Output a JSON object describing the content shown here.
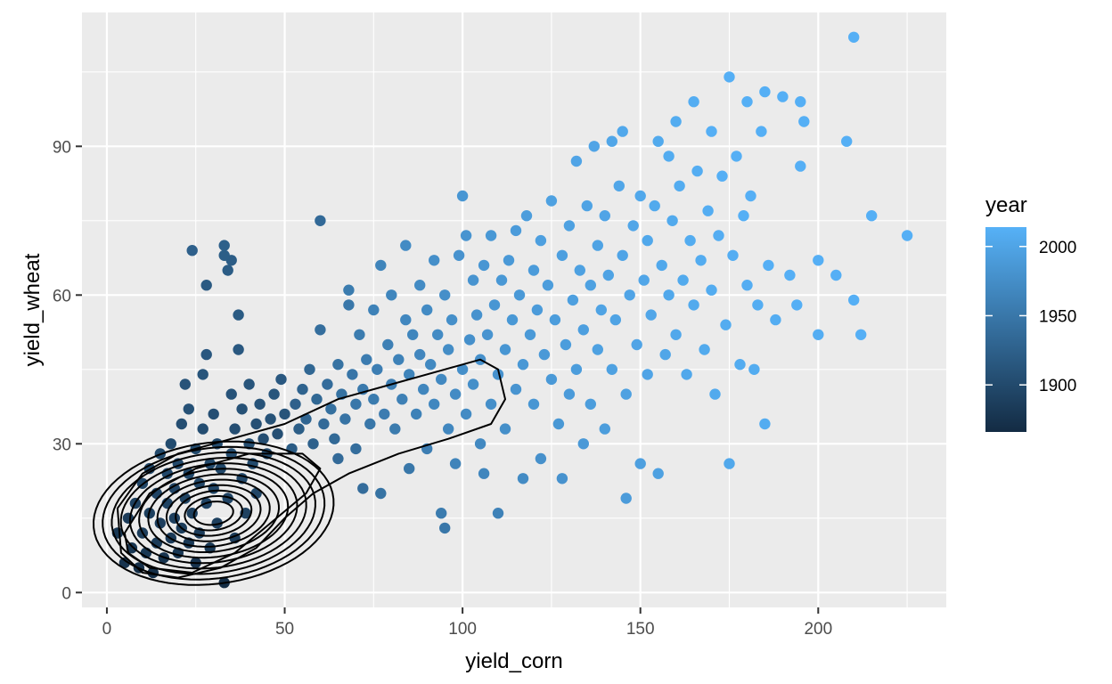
{
  "chart_data": {
    "type": "scatter",
    "title": "",
    "xlabel": "yield_corn",
    "ylabel": "yield_wheat",
    "xlim": [
      -7,
      236
    ],
    "ylim": [
      -3,
      117
    ],
    "x_ticks": [
      0,
      50,
      100,
      150,
      200
    ],
    "y_ticks": [
      0,
      30,
      60,
      90
    ],
    "grid": true,
    "legend": {
      "title": "year",
      "position": "right",
      "type": "colorbar",
      "range": [
        1866,
        2014
      ],
      "ticks": [
        1900,
        1950,
        2000
      ],
      "colors": {
        "low": "#132B43",
        "high": "#56B1F7"
      }
    },
    "overlay": "2d density contours",
    "colors": {
      "panel": "#EBEBEB",
      "grid": "#FFFFFF",
      "contour": "#000000"
    },
    "points": [
      [
        3,
        12,
        1880
      ],
      [
        5,
        6,
        1875
      ],
      [
        6,
        15,
        1885
      ],
      [
        7,
        9,
        1878
      ],
      [
        8,
        18,
        1890
      ],
      [
        9,
        5,
        1872
      ],
      [
        10,
        12,
        1886
      ],
      [
        10,
        22,
        1895
      ],
      [
        11,
        8,
        1880
      ],
      [
        12,
        16,
        1889
      ],
      [
        12,
        25,
        1898
      ],
      [
        13,
        4,
        1870
      ],
      [
        14,
        10,
        1884
      ],
      [
        14,
        20,
        1893
      ],
      [
        15,
        14,
        1887
      ],
      [
        15,
        28,
        1900
      ],
      [
        16,
        7,
        1876
      ],
      [
        17,
        18,
        1892
      ],
      [
        17,
        24,
        1897
      ],
      [
        18,
        11,
        1883
      ],
      [
        18,
        30,
        1902
      ],
      [
        19,
        15,
        1888
      ],
      [
        19,
        21,
        1894
      ],
      [
        20,
        8,
        1879
      ],
      [
        20,
        26,
        1899
      ],
      [
        21,
        13,
        1886
      ],
      [
        21,
        34,
        1905
      ],
      [
        22,
        19,
        1891
      ],
      [
        22,
        42,
        1910
      ],
      [
        23,
        10,
        1882
      ],
      [
        23,
        24,
        1898
      ],
      [
        23,
        37,
        1908
      ],
      [
        24,
        69,
        1925
      ],
      [
        24,
        16,
        1889
      ],
      [
        25,
        29,
        1900
      ],
      [
        25,
        6,
        1874
      ],
      [
        26,
        12,
        1885
      ],
      [
        26,
        22,
        1896
      ],
      [
        27,
        44,
        1912
      ],
      [
        27,
        33,
        1904
      ],
      [
        28,
        62,
        1918
      ],
      [
        28,
        18,
        1892
      ],
      [
        28,
        48,
        1915
      ],
      [
        29,
        26,
        1899
      ],
      [
        29,
        9,
        1881
      ],
      [
        30,
        21,
        1895
      ],
      [
        30,
        36,
        1906
      ],
      [
        31,
        14,
        1888
      ],
      [
        31,
        30,
        1902
      ],
      [
        32,
        25,
        1898
      ],
      [
        33,
        68,
        1922
      ],
      [
        33,
        70,
        1924
      ],
      [
        33,
        2,
        1868
      ],
      [
        34,
        19,
        1894
      ],
      [
        34,
        65,
        1920
      ],
      [
        35,
        67,
        1921
      ],
      [
        35,
        40,
        1910
      ],
      [
        35,
        28,
        1901
      ],
      [
        36,
        33,
        1905
      ],
      [
        36,
        11,
        1885
      ],
      [
        37,
        49,
        1916
      ],
      [
        37,
        56,
        1919
      ],
      [
        38,
        23,
        1897
      ],
      [
        38,
        37,
        1908
      ],
      [
        39,
        16,
        1890
      ],
      [
        40,
        30,
        1903
      ],
      [
        40,
        42,
        1912
      ],
      [
        41,
        26,
        1900
      ],
      [
        42,
        34,
        1907
      ],
      [
        42,
        20,
        1896
      ],
      [
        43,
        38,
        1910
      ],
      [
        44,
        31,
        1905
      ],
      [
        45,
        28,
        1902
      ],
      [
        46,
        35,
        1909
      ],
      [
        47,
        40,
        1913
      ],
      [
        48,
        32,
        1906
      ],
      [
        49,
        43,
        1916
      ],
      [
        50,
        36,
        1911
      ],
      [
        52,
        29,
        1920
      ],
      [
        53,
        38,
        1925
      ],
      [
        54,
        33,
        1922
      ],
      [
        55,
        41,
        1928
      ],
      [
        56,
        35,
        1930
      ],
      [
        57,
        45,
        1932
      ],
      [
        58,
        30,
        1926
      ],
      [
        59,
        39,
        1933
      ],
      [
        60,
        75,
        1935
      ],
      [
        60,
        53,
        1940
      ],
      [
        61,
        34,
        1936
      ],
      [
        62,
        42,
        1938
      ],
      [
        63,
        37,
        1942
      ],
      [
        64,
        31,
        1934
      ],
      [
        65,
        46,
        1945
      ],
      [
        65,
        27,
        1936
      ],
      [
        66,
        40,
        1944
      ],
      [
        67,
        35,
        1946
      ],
      [
        68,
        58,
        1950
      ],
      [
        68,
        61,
        1955
      ],
      [
        69,
        44,
        1948
      ],
      [
        70,
        38,
        1950
      ],
      [
        70,
        29,
        1940
      ],
      [
        71,
        52,
        1955
      ],
      [
        72,
        41,
        1952
      ],
      [
        72,
        21,
        1938
      ],
      [
        73,
        47,
        1956
      ],
      [
        74,
        34,
        1950
      ],
      [
        75,
        57,
        1962
      ],
      [
        75,
        39,
        1955
      ],
      [
        76,
        45,
        1958
      ],
      [
        77,
        20,
        1945
      ],
      [
        77,
        66,
        1965
      ],
      [
        78,
        36,
        1956
      ],
      [
        79,
        50,
        1960
      ],
      [
        80,
        42,
        1958
      ],
      [
        80,
        60,
        1966
      ],
      [
        81,
        33,
        1954
      ],
      [
        82,
        47,
        1962
      ],
      [
        83,
        39,
        1960
      ],
      [
        84,
        55,
        1968
      ],
      [
        84,
        70,
        1972
      ],
      [
        85,
        44,
        1964
      ],
      [
        85,
        25,
        1950
      ],
      [
        86,
        52,
        1966
      ],
      [
        87,
        36,
        1962
      ],
      [
        88,
        48,
        1967
      ],
      [
        88,
        62,
        1972
      ],
      [
        89,
        41,
        1966
      ],
      [
        90,
        57,
        1972
      ],
      [
        90,
        29,
        1958
      ],
      [
        91,
        46,
        1970
      ],
      [
        92,
        67,
        1976
      ],
      [
        92,
        38,
        1968
      ],
      [
        93,
        52,
        1972
      ],
      [
        94,
        16,
        1955
      ],
      [
        94,
        43,
        1970
      ],
      [
        95,
        13,
        1950
      ],
      [
        95,
        60,
        1976
      ],
      [
        96,
        49,
        1974
      ],
      [
        96,
        33,
        1968
      ],
      [
        97,
        55,
        1976
      ],
      [
        98,
        40,
        1972
      ],
      [
        98,
        26,
        1964
      ],
      [
        99,
        68,
        1980
      ],
      [
        100,
        45,
        1976
      ],
      [
        100,
        80,
        1984
      ],
      [
        101,
        72,
        1982
      ],
      [
        101,
        36,
        1972
      ],
      [
        102,
        51,
        1978
      ],
      [
        103,
        63,
        1982
      ],
      [
        103,
        42,
        1976
      ],
      [
        104,
        56,
        1980
      ],
      [
        105,
        47,
        1978
      ],
      [
        105,
        30,
        1970
      ],
      [
        106,
        66,
        1984
      ],
      [
        106,
        24,
        1966
      ],
      [
        107,
        52,
        1982
      ],
      [
        108,
        72,
        1986
      ],
      [
        108,
        38,
        1976
      ],
      [
        109,
        58,
        1984
      ],
      [
        110,
        44,
        1980
      ],
      [
        110,
        16,
        1962
      ],
      [
        111,
        63,
        1986
      ],
      [
        112,
        49,
        1984
      ],
      [
        112,
        33,
        1976
      ],
      [
        113,
        67,
        1988
      ],
      [
        114,
        55,
        1986
      ],
      [
        115,
        41,
        1982
      ],
      [
        115,
        73,
        1990
      ],
      [
        116,
        60,
        1988
      ],
      [
        117,
        46,
        1986
      ],
      [
        117,
        23,
        1972
      ],
      [
        118,
        76,
        1992
      ],
      [
        119,
        52,
        1988
      ],
      [
        120,
        65,
        1990
      ],
      [
        120,
        38,
        1984
      ],
      [
        121,
        57,
        1990
      ],
      [
        122,
        71,
        1994
      ],
      [
        122,
        27,
        1978
      ],
      [
        123,
        48,
        1988
      ],
      [
        124,
        62,
        1992
      ],
      [
        125,
        79,
        1996
      ],
      [
        125,
        43,
        1988
      ],
      [
        126,
        55,
        1992
      ],
      [
        127,
        34,
        1986
      ],
      [
        128,
        68,
        1994
      ],
      [
        128,
        23,
        1980
      ],
      [
        129,
        50,
        1992
      ],
      [
        130,
        74,
        1996
      ],
      [
        130,
        40,
        1990
      ],
      [
        131,
        59,
        1994
      ],
      [
        132,
        87,
        2000
      ],
      [
        132,
        45,
        1992
      ],
      [
        133,
        65,
        1996
      ],
      [
        134,
        30,
        1988
      ],
      [
        134,
        53,
        1994
      ],
      [
        135,
        78,
        1998
      ],
      [
        136,
        62,
        1996
      ],
      [
        136,
        38,
        1992
      ],
      [
        137,
        90,
        2000
      ],
      [
        138,
        49,
        1996
      ],
      [
        138,
        70,
        1998
      ],
      [
        139,
        57,
        1998
      ],
      [
        140,
        33,
        1992
      ],
      [
        140,
        76,
        2000
      ],
      [
        141,
        64,
        1998
      ],
      [
        142,
        45,
        1996
      ],
      [
        142,
        91,
        2002
      ],
      [
        143,
        55,
        1998
      ],
      [
        144,
        82,
        2002
      ],
      [
        145,
        68,
        2000
      ],
      [
        145,
        93,
        2004
      ],
      [
        146,
        40,
        1996
      ],
      [
        146,
        19,
        1990
      ],
      [
        147,
        60,
        2000
      ],
      [
        148,
        74,
        2002
      ],
      [
        149,
        50,
        2000
      ],
      [
        150,
        80,
        2004
      ],
      [
        150,
        26,
        1994
      ],
      [
        151,
        63,
        2002
      ],
      [
        152,
        44,
        2000
      ],
      [
        152,
        71,
        2004
      ],
      [
        153,
        56,
        2002
      ],
      [
        154,
        78,
        2006
      ],
      [
        155,
        24,
        1996
      ],
      [
        155,
        91,
        2006
      ],
      [
        156,
        66,
        2004
      ],
      [
        157,
        48,
        2002
      ],
      [
        158,
        60,
        2004
      ],
      [
        158,
        88,
        2008
      ],
      [
        159,
        75,
        2006
      ],
      [
        160,
        95,
        2008
      ],
      [
        160,
        52,
        2004
      ],
      [
        161,
        82,
        2008
      ],
      [
        162,
        63,
        2006
      ],
      [
        163,
        44,
        2004
      ],
      [
        164,
        71,
        2008
      ],
      [
        165,
        99,
        2010
      ],
      [
        165,
        58,
        2006
      ],
      [
        166,
        85,
        2010
      ],
      [
        167,
        67,
        2008
      ],
      [
        168,
        49,
        2006
      ],
      [
        169,
        77,
        2010
      ],
      [
        170,
        93,
        2012
      ],
      [
        170,
        61,
        2008
      ],
      [
        171,
        40,
        2006
      ],
      [
        172,
        72,
        2010
      ],
      [
        173,
        84,
        2012
      ],
      [
        174,
        54,
        2008
      ],
      [
        175,
        104,
        2012
      ],
      [
        175,
        26,
        2004
      ],
      [
        176,
        68,
        2010
      ],
      [
        177,
        88,
        2012
      ],
      [
        178,
        46,
        2008
      ],
      [
        179,
        76,
        2012
      ],
      [
        180,
        62,
        2010
      ],
      [
        180,
        99,
        2012
      ],
      [
        181,
        80,
        2012
      ],
      [
        182,
        45,
        2008
      ],
      [
        183,
        58,
        2010
      ],
      [
        184,
        93,
        2012
      ],
      [
        185,
        101,
        2012
      ],
      [
        185,
        34,
        2008
      ],
      [
        186,
        66,
        2012
      ],
      [
        188,
        55,
        2010
      ],
      [
        190,
        100,
        2012
      ],
      [
        192,
        64,
        2012
      ],
      [
        194,
        58,
        2012
      ],
      [
        195,
        86,
        2012
      ],
      [
        195,
        99,
        2012
      ],
      [
        196,
        95,
        2012
      ],
      [
        200,
        67,
        2012
      ],
      [
        200,
        52,
        2010
      ],
      [
        205,
        64,
        2012
      ],
      [
        208,
        91,
        2012
      ],
      [
        210,
        112,
        2012
      ],
      [
        210,
        59,
        2012
      ],
      [
        212,
        52,
        2012
      ],
      [
        215,
        76,
        2012
      ],
      [
        225,
        72,
        2012
      ]
    ]
  }
}
